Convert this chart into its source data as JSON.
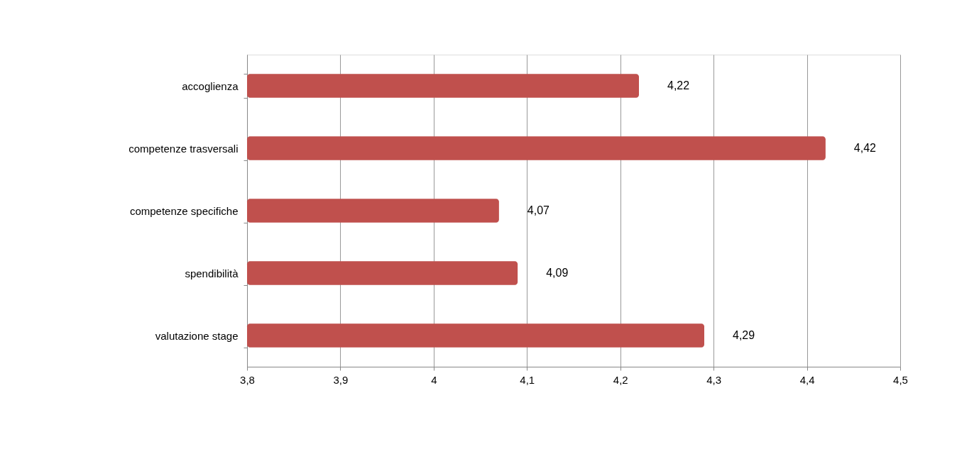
{
  "chart_data": {
    "type": "bar",
    "orientation": "horizontal",
    "categories": [
      "accoglienza",
      "competenze trasversali",
      "competenze specifiche",
      "spendibilità",
      "valutazione stage"
    ],
    "values": [
      4.22,
      4.42,
      4.07,
      4.09,
      4.29
    ],
    "value_labels": [
      "4,22",
      "4,42",
      "4,07",
      "4,09",
      "4,29"
    ],
    "color": "#c0504d",
    "xlim": [
      3.8,
      4.5
    ],
    "xticks": [
      {
        "value": 3.8,
        "label": "3,8"
      },
      {
        "value": 3.9,
        "label": "3,9"
      },
      4,
      {
        "value": 4.1,
        "label": "4,1"
      },
      {
        "value": 4.2,
        "label": "4,2"
      },
      {
        "value": 4.3,
        "label": "4,3"
      },
      {
        "value": 4.4,
        "label": "4,4"
      },
      {
        "value": 4.5,
        "label": "4,5"
      }
    ],
    "grid": "x"
  }
}
